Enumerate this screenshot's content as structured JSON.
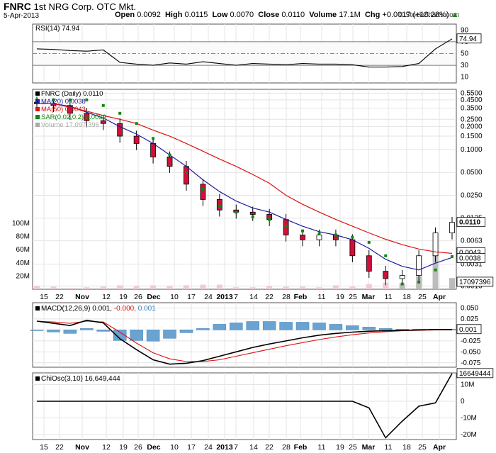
{
  "header": {
    "symbol": "FNRC",
    "company": "1st NRG Corp.",
    "exchange": "OTC Mkt.",
    "date": "5-Apr-2013",
    "open_label": "Open",
    "open": "0.0092",
    "high_label": "High",
    "high": "0.0115",
    "low_label": "Low",
    "low": "0.0070",
    "close_label": "Close",
    "close": "0.0110",
    "volume_label": "Volume",
    "volume": "17.1M",
    "chg_label": "Chg",
    "chg": "+0.0017 (+18.28%)",
    "up_arrow": "▲",
    "source": "© StockCharts.com"
  },
  "chart_data": [
    {
      "type": "line",
      "title": "RSI(14) 74.94",
      "ylim": [
        0,
        100
      ],
      "y_ticks": [
        "90",
        "70",
        "50",
        "30",
        "10"
      ],
      "reference_lines": [
        70,
        50,
        30
      ],
      "last_value_label": "74.94",
      "x": [
        "2012-10-15",
        "2012-10-22",
        "2012-10-29",
        "2012-11-05",
        "2012-11-12",
        "2012-11-19",
        "2012-11-26",
        "2012-12-03",
        "2012-12-10",
        "2012-12-17",
        "2012-12-24",
        "2012-12-31",
        "2013-01-07",
        "2013-01-14",
        "2013-01-21",
        "2013-01-28",
        "2013-02-04",
        "2013-02-11",
        "2013-02-18",
        "2013-02-25",
        "2013-03-04",
        "2013-03-11",
        "2013-03-18",
        "2013-03-25",
        "2013-04-01",
        "2013-04-05"
      ],
      "values": [
        58,
        57,
        55,
        54,
        56,
        35,
        32,
        30,
        34,
        32,
        36,
        33,
        30,
        33,
        32,
        31,
        33,
        32,
        32,
        31,
        27,
        27,
        28,
        33,
        58,
        75
      ]
    },
    {
      "type": "candlestick",
      "title": "FNRC (Daily) 0.0110",
      "y_scale": "log",
      "y_ticks": [
        "0.5500",
        "0.4500",
        "0.3500",
        "0.2500",
        "0.2000",
        "0.1500",
        "0.1000",
        "0.0500",
        "0.0250",
        "0.0125",
        "0.0063",
        "0.0031",
        "0.0016"
      ],
      "volume_ticks": [
        "100M",
        "80M",
        "60M",
        "40M",
        "20M"
      ],
      "price_labels": [
        "0.0110",
        "0.0043",
        "0.0038"
      ],
      "volume_label": "17097396",
      "x_ticks": [
        "15",
        "22",
        "Nov",
        "12",
        "19",
        "26",
        "Dec",
        "10",
        "17",
        "24",
        "2013",
        "7",
        "14",
        "22",
        "28",
        "Feb",
        "11",
        "19",
        "25",
        "Mar",
        "11",
        "18",
        "25",
        "Apr"
      ],
      "legend": [
        {
          "name": "FNRC (Daily) 0.0110",
          "color": "#000000"
        },
        {
          "name": "MA(20) 0.0038",
          "color": "#1c1c9c"
        },
        {
          "name": "MA(50) 0.0043",
          "color": "#dd1111"
        },
        {
          "name": "SAR(0.02,0.2) 0.0039",
          "color": "#118811"
        },
        {
          "name": "Volume 17,097,396",
          "color": "#aaaaaa"
        }
      ],
      "x": [
        "2012-10-15",
        "2012-10-22",
        "2012-10-29",
        "2012-11-05",
        "2012-11-12",
        "2012-11-19",
        "2012-11-26",
        "2012-12-03",
        "2012-12-10",
        "2012-12-17",
        "2012-12-24",
        "2012-12-31",
        "2013-01-07",
        "2013-01-14",
        "2013-01-21",
        "2013-01-28",
        "2013-02-04",
        "2013-02-11",
        "2013-02-18",
        "2013-02-25",
        "2013-03-04",
        "2013-03-11",
        "2013-03-18",
        "2013-03-25",
        "2013-04-01",
        "2013-04-05"
      ],
      "series": [
        {
          "name": "Close",
          "values": [
            0.4,
            0.38,
            0.3,
            0.24,
            0.22,
            0.15,
            0.12,
            0.08,
            0.06,
            0.035,
            0.022,
            0.016,
            0.015,
            0.014,
            0.012,
            0.0075,
            0.0065,
            0.0075,
            0.0065,
            0.004,
            0.0025,
            0.002,
            0.0022,
            0.004,
            0.008,
            0.011
          ]
        },
        {
          "name": "MA(20)",
          "values": [
            0.4,
            0.4,
            0.37,
            0.31,
            0.26,
            0.2,
            0.16,
            0.12,
            0.085,
            0.06,
            0.04,
            0.028,
            0.021,
            0.017,
            0.015,
            0.012,
            0.0098,
            0.0083,
            0.0075,
            0.0065,
            0.005,
            0.0036,
            0.0029,
            0.0026,
            0.0032,
            0.0038
          ]
        },
        {
          "name": "MA(50)",
          "values": [
            0.4,
            0.4,
            0.36,
            0.32,
            0.28,
            0.25,
            0.22,
            0.18,
            0.15,
            0.12,
            0.095,
            0.075,
            0.06,
            0.047,
            0.036,
            0.025,
            0.019,
            0.015,
            0.012,
            0.0098,
            0.008,
            0.0066,
            0.0056,
            0.0049,
            0.0045,
            0.0043
          ]
        },
        {
          "name": "SAR(0.02,0.2)",
          "values": [
            0.45,
            0.45,
            0.45,
            0.45,
            0.38,
            0.3,
            0.22,
            0.14,
            0.085,
            0.05,
            0.03,
            0.018,
            0.015,
            0.013,
            0.012,
            0.0098,
            0.0085,
            0.0078,
            0.0075,
            0.007,
            0.006,
            0.004,
            0.0017,
            0.0018,
            0.0026,
            0.0039
          ]
        },
        {
          "name": "Volume",
          "values": [
            5,
            4,
            2,
            3,
            4,
            6,
            5,
            6,
            5,
            6,
            7,
            7,
            3,
            3,
            5,
            4,
            4,
            3,
            6,
            4,
            8,
            10,
            9,
            20,
            55,
            17
          ]
        }
      ]
    },
    {
      "type": "line",
      "title": "MACD(12,26,9) 0.001, -0.000, 0.001",
      "title_parts": {
        "name": "MACD(12,26,9)",
        "macd": "0.001,",
        "signal": "-0.000,",
        "hist": "0.001"
      },
      "y_ticks": [
        "0.050",
        "0.025",
        "0.000",
        "-0.025",
        "-0.050",
        "-0.075"
      ],
      "ylim": [
        -0.085,
        0.062
      ],
      "last_value_label": "0.001",
      "x": [
        "2012-10-15",
        "2012-10-22",
        "2012-10-29",
        "2012-11-05",
        "2012-11-12",
        "2012-11-19",
        "2012-11-26",
        "2012-12-03",
        "2012-12-10",
        "2012-12-17",
        "2012-12-24",
        "2012-12-31",
        "2013-01-07",
        "2013-01-14",
        "2013-01-21",
        "2013-01-28",
        "2013-02-04",
        "2013-02-11",
        "2013-02-18",
        "2013-02-25",
        "2013-03-04",
        "2013-03-11",
        "2013-03-18",
        "2013-03-25",
        "2013-04-01",
        "2013-04-05"
      ],
      "series": [
        {
          "name": "MACD",
          "values": [
            0.02,
            0.015,
            0.01,
            0.022,
            0.016,
            -0.02,
            -0.045,
            -0.068,
            -0.078,
            -0.076,
            -0.07,
            -0.06,
            -0.05,
            -0.04,
            -0.032,
            -0.025,
            -0.018,
            -0.012,
            -0.008,
            -0.005,
            -0.003,
            -0.002,
            -0.001,
            0.0,
            0.001,
            0.001
          ]
        },
        {
          "name": "Signal",
          "values": [
            0.02,
            0.018,
            0.015,
            0.02,
            0.018,
            -0.005,
            -0.03,
            -0.052,
            -0.066,
            -0.072,
            -0.072,
            -0.068,
            -0.06,
            -0.052,
            -0.044,
            -0.036,
            -0.029,
            -0.022,
            -0.016,
            -0.011,
            -0.007,
            -0.004,
            -0.002,
            -0.001,
            0.0,
            0.0
          ]
        },
        {
          "name": "Histogram",
          "values": [
            0.0,
            -0.003,
            -0.005,
            0.002,
            -0.002,
            -0.015,
            -0.015,
            -0.016,
            -0.012,
            -0.004,
            0.002,
            0.008,
            0.01,
            0.012,
            0.012,
            0.011,
            0.011,
            0.01,
            0.008,
            0.006,
            0.004,
            0.002,
            0.001,
            0.001,
            0.001,
            0.001
          ]
        }
      ]
    },
    {
      "type": "line",
      "title": "ChiOsc(3,10) 16,649,444",
      "y_ticks": [
        "10M",
        "0",
        "-10M",
        "-20M"
      ],
      "ylim": [
        -23000000,
        17000000
      ],
      "last_value_label": "16649444",
      "x_ticks": [
        "15",
        "22",
        "Nov",
        "12",
        "19",
        "26",
        "Dec",
        "10",
        "17",
        "24",
        "2013",
        "7",
        "14",
        "22",
        "28",
        "Feb",
        "11",
        "19",
        "25",
        "Mar",
        "11",
        "18",
        "25",
        "Apr"
      ],
      "x": [
        "2012-10-15",
        "2012-10-22",
        "2012-10-29",
        "2012-11-05",
        "2012-11-12",
        "2012-11-19",
        "2012-11-26",
        "2012-12-03",
        "2012-12-10",
        "2012-12-17",
        "2012-12-24",
        "2012-12-31",
        "2013-01-07",
        "2013-01-14",
        "2013-01-21",
        "2013-01-28",
        "2013-02-04",
        "2013-02-11",
        "2013-02-18",
        "2013-02-25",
        "2013-03-04",
        "2013-03-11",
        "2013-03-18",
        "2013-03-25",
        "2013-04-01",
        "2013-04-05"
      ],
      "values": [
        0,
        0,
        0,
        0,
        0,
        0,
        0,
        0,
        0,
        0,
        0,
        0,
        0,
        0,
        0,
        0,
        0,
        0,
        0,
        0,
        -4000000,
        -22000000,
        -12000000,
        -3000000,
        -1000000,
        16649444
      ]
    }
  ]
}
